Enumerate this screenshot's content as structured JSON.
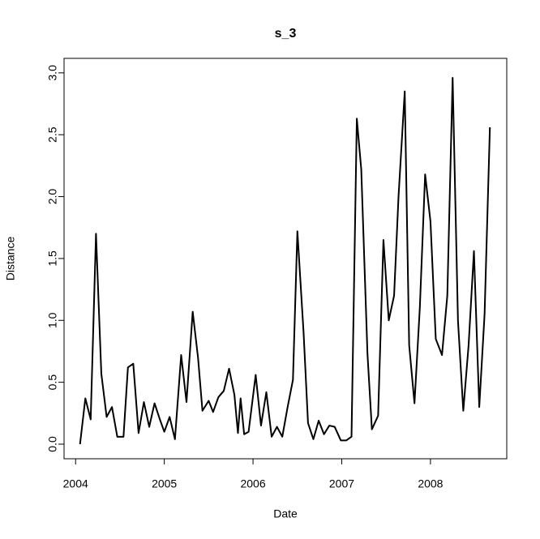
{
  "chart_data": {
    "type": "line",
    "title": "s_3",
    "x_label": "Date",
    "y_label": "Distance",
    "x": [
      2004.05,
      2004.11,
      2004.17,
      2004.23,
      2004.29,
      2004.35,
      2004.41,
      2004.47,
      2004.54,
      2004.59,
      2004.65,
      2004.71,
      2004.77,
      2004.83,
      2004.89,
      2004.95,
      2005.0,
      2005.06,
      2005.12,
      2005.19,
      2005.25,
      2005.32,
      2005.38,
      2005.43,
      2005.5,
      2005.55,
      2005.61,
      2005.67,
      2005.73,
      2005.79,
      2005.83,
      2005.86,
      2005.9,
      2005.95,
      2006.03,
      2006.09,
      2006.15,
      2006.21,
      2006.27,
      2006.33,
      2006.39,
      2006.45,
      2006.5,
      2006.57,
      2006.62,
      2006.68,
      2006.74,
      2006.8,
      2006.86,
      2006.92,
      2006.99,
      2007.05,
      2007.11,
      2007.17,
      2007.22,
      2007.29,
      2007.34,
      2007.41,
      2007.47,
      2007.53,
      2007.59,
      2007.64,
      2007.71,
      2007.76,
      2007.82,
      2007.88,
      2007.94,
      2008.0,
      2008.06,
      2008.13,
      2008.19,
      2008.25,
      2008.31,
      2008.37,
      2008.43,
      2008.49,
      2008.55,
      2008.61,
      2008.67
    ],
    "series": [
      {
        "name": "s_3",
        "color": "#000000",
        "values": [
          0.0,
          0.37,
          0.2,
          1.7,
          0.57,
          0.22,
          0.3,
          0.06,
          0.06,
          0.62,
          0.65,
          0.09,
          0.34,
          0.14,
          0.33,
          0.2,
          0.1,
          0.22,
          0.04,
          0.72,
          0.34,
          1.07,
          0.7,
          0.27,
          0.35,
          0.26,
          0.38,
          0.43,
          0.61,
          0.4,
          0.09,
          0.37,
          0.08,
          0.1,
          0.56,
          0.15,
          0.42,
          0.06,
          0.14,
          0.06,
          0.3,
          0.52,
          1.72,
          0.9,
          0.17,
          0.04,
          0.19,
          0.08,
          0.15,
          0.14,
          0.03,
          0.03,
          0.06,
          2.63,
          2.22,
          0.73,
          0.12,
          0.23,
          1.65,
          1.0,
          1.2,
          2.0,
          2.85,
          0.8,
          0.33,
          1.1,
          2.18,
          1.8,
          0.85,
          0.72,
          1.2,
          2.96,
          1.0,
          0.27,
          0.8,
          1.56,
          0.3,
          1.05,
          2.56
        ]
      }
    ],
    "xlim": [
      2003.87,
      2008.86
    ],
    "xticks": [
      2004,
      2005,
      2006,
      2007,
      2008
    ],
    "ylim": [
      -0.118,
      3.117
    ],
    "yticks": [
      {
        "value": 0,
        "label": "0.0"
      },
      {
        "value": 0.5,
        "label": "0.5"
      },
      {
        "value": 1,
        "label": "1.0"
      },
      {
        "value": 1.5,
        "label": "1.5"
      },
      {
        "value": 2,
        "label": "2.0"
      },
      {
        "value": 2.5,
        "label": "2.5"
      },
      {
        "value": 3,
        "label": "3.0"
      }
    ]
  }
}
